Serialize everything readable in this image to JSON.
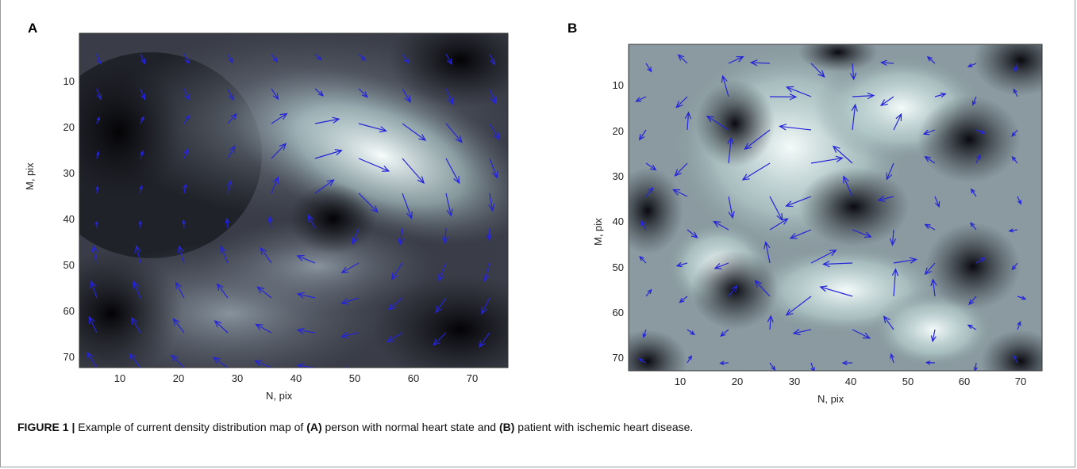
{
  "panels": [
    {
      "letter": "A",
      "xlabel": "N, pix",
      "ylabel": "M, pix",
      "xticks": [
        "10",
        "20",
        "30",
        "40",
        "50",
        "60",
        "70"
      ],
      "yticks": [
        "10",
        "20",
        "30",
        "40",
        "50",
        "60",
        "70"
      ]
    },
    {
      "letter": "B",
      "xlabel": "N, pix",
      "ylabel": "M, pix",
      "xticks": [
        "10",
        "20",
        "30",
        "40",
        "50",
        "60",
        "70"
      ],
      "yticks": [
        "10",
        "20",
        "30",
        "40",
        "50",
        "60",
        "70"
      ]
    }
  ],
  "caption": {
    "label": "FIGURE 1 |",
    "text_1": " Example of current density distribution map of ",
    "a_marker": "(A)",
    "text_2": " person with normal heart state and ",
    "b_marker": "(B)",
    "text_3": " patient with ischemic heart disease."
  },
  "colors": {
    "arrow": "#2424d8",
    "heatmap_dark": "#050508",
    "heatmap_light": "#f4fbfa"
  }
}
